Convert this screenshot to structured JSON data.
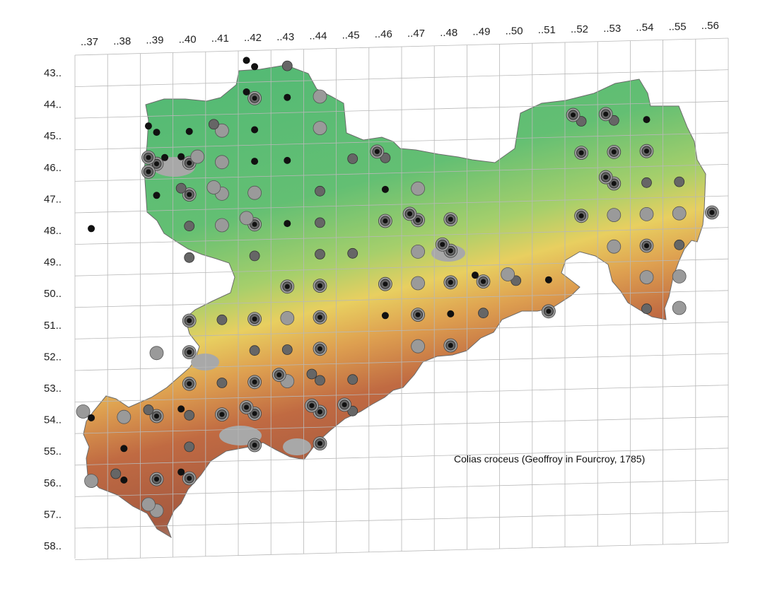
{
  "map": {
    "species_label": "Colias croceus (Geoffroy in Fourcroy, 1785)",
    "column_labels": [
      "..37",
      "..38",
      "..39",
      "..40",
      "..41",
      "..42",
      "..43",
      "..44",
      "..45",
      "..46",
      "..47",
      "..48",
      "..49",
      "..50",
      "..51",
      "..52",
      "..53",
      "..54",
      "..55",
      "..56"
    ],
    "row_labels": [
      "43..",
      "44..",
      "45..",
      "46..",
      "47..",
      "48..",
      "49..",
      "50..",
      "51..",
      "52..",
      "53..",
      "54..",
      "55..",
      "56..",
      "57..",
      "58.."
    ],
    "colors": {
      "grid": "#b8b8b8",
      "dot_light": "#9a9a9a",
      "dot_mid": "#666666",
      "dot_dark": "#111111",
      "elev_low": "#5fbf7a",
      "elev_mid": "#e8c85a",
      "elev_high": "#b0553a",
      "elev_peak": "#9b9b9b"
    },
    "records": [
      {
        "col": "..42",
        "row": "43..",
        "kind": "small"
      },
      {
        "col": "..42",
        "row": "43..",
        "kind": "small"
      },
      {
        "col": "..43",
        "row": "43..",
        "kind": "mid"
      },
      {
        "col": "..42",
        "row": "44..",
        "kind": "ring"
      },
      {
        "col": "..43",
        "row": "44..",
        "kind": "small"
      },
      {
        "col": "..44",
        "row": "44..",
        "kind": "large"
      },
      {
        "col": "..42",
        "row": "44..",
        "kind": "small"
      },
      {
        "col": "..39",
        "row": "45..",
        "kind": "small"
      },
      {
        "col": "..41",
        "row": "45..",
        "kind": "large"
      },
      {
        "col": "..44",
        "row": "45..",
        "kind": "large"
      },
      {
        "col": "..39",
        "row": "45..",
        "kind": "small"
      },
      {
        "col": "..40",
        "row": "45..",
        "kind": "small"
      },
      {
        "col": "..41",
        "row": "45..",
        "kind": "mid"
      },
      {
        "col": "..42",
        "row": "45..",
        "kind": "small"
      },
      {
        "col": "..39",
        "row": "46..",
        "kind": "ring"
      },
      {
        "col": "..39",
        "row": "46..",
        "kind": "ring"
      },
      {
        "col": "..40",
        "row": "46..",
        "kind": "ring"
      },
      {
        "col": "..40",
        "row": "46..",
        "kind": "small"
      },
      {
        "col": "..41",
        "row": "46..",
        "kind": "large"
      },
      {
        "col": "..42",
        "row": "46..",
        "kind": "small"
      },
      {
        "col": "..43",
        "row": "46..",
        "kind": "small"
      },
      {
        "col": "..39",
        "row": "46..",
        "kind": "small"
      },
      {
        "col": "..39",
        "row": "46..",
        "kind": "ring"
      },
      {
        "col": "..40",
        "row": "46..",
        "kind": "large"
      },
      {
        "col": "..40",
        "row": "47..",
        "kind": "ring"
      },
      {
        "col": "..39",
        "row": "47..",
        "kind": "small"
      },
      {
        "col": "..40",
        "row": "47..",
        "kind": "mid"
      },
      {
        "col": "..41",
        "row": "47..",
        "kind": "large"
      },
      {
        "col": "..41",
        "row": "47..",
        "kind": "large"
      },
      {
        "col": "..42",
        "row": "47..",
        "kind": "large"
      },
      {
        "col": "..44",
        "row": "47..",
        "kind": "mid"
      },
      {
        "col": "..45",
        "row": "46..",
        "kind": "mid"
      },
      {
        "col": "..46",
        "row": "46..",
        "kind": "mid"
      },
      {
        "col": "..46",
        "row": "46..",
        "kind": "ring"
      },
      {
        "col": "..47",
        "row": "47..",
        "kind": "large"
      },
      {
        "col": "..37",
        "row": "48..",
        "kind": "small"
      },
      {
        "col": "..40",
        "row": "48..",
        "kind": "mid"
      },
      {
        "col": "..41",
        "row": "48..",
        "kind": "large"
      },
      {
        "col": "..42",
        "row": "48..",
        "kind": "ring"
      },
      {
        "col": "..43",
        "row": "48..",
        "kind": "small"
      },
      {
        "col": "..44",
        "row": "48..",
        "kind": "mid"
      },
      {
        "col": "..42",
        "row": "48..",
        "kind": "large"
      },
      {
        "col": "..40",
        "row": "49..",
        "kind": "mid"
      },
      {
        "col": "..42",
        "row": "49..",
        "kind": "mid"
      },
      {
        "col": "..44",
        "row": "49..",
        "kind": "mid"
      },
      {
        "col": "..45",
        "row": "49..",
        "kind": "mid"
      },
      {
        "col": "..46",
        "row": "47..",
        "kind": "small"
      },
      {
        "col": "..46",
        "row": "48..",
        "kind": "ring"
      },
      {
        "col": "..47",
        "row": "48..",
        "kind": "ring"
      },
      {
        "col": "..47",
        "row": "48..",
        "kind": "ring"
      },
      {
        "col": "..48",
        "row": "48..",
        "kind": "ring"
      },
      {
        "col": "..47",
        "row": "49..",
        "kind": "large"
      },
      {
        "col": "..48",
        "row": "49..",
        "kind": "ring"
      },
      {
        "col": "..48",
        "row": "49..",
        "kind": "ring"
      },
      {
        "col": "..48",
        "row": "50..",
        "kind": "ring"
      },
      {
        "col": "..49",
        "row": "50..",
        "kind": "ring"
      },
      {
        "col": "..49",
        "row": "50..",
        "kind": "small"
      },
      {
        "col": "..50",
        "row": "50..",
        "kind": "mid"
      },
      {
        "col": "..50",
        "row": "50..",
        "kind": "large"
      },
      {
        "col": "..51",
        "row": "50..",
        "kind": "small"
      },
      {
        "col": "..51",
        "row": "51..",
        "kind": "ring"
      },
      {
        "col": "..52",
        "row": "45..",
        "kind": "mid"
      },
      {
        "col": "..52",
        "row": "45..",
        "kind": "ring"
      },
      {
        "col": "..53",
        "row": "45..",
        "kind": "mid"
      },
      {
        "col": "..53",
        "row": "45..",
        "kind": "ring"
      },
      {
        "col": "..54",
        "row": "45..",
        "kind": "small"
      },
      {
        "col": "..52",
        "row": "46..",
        "kind": "ring"
      },
      {
        "col": "..53",
        "row": "46..",
        "kind": "ring"
      },
      {
        "col": "..54",
        "row": "46..",
        "kind": "ring"
      },
      {
        "col": "..53",
        "row": "47..",
        "kind": "ring"
      },
      {
        "col": "..53",
        "row": "47..",
        "kind": "ring"
      },
      {
        "col": "..54",
        "row": "47..",
        "kind": "mid"
      },
      {
        "col": "..55",
        "row": "47..",
        "kind": "mid"
      },
      {
        "col": "..52",
        "row": "48..",
        "kind": "ring"
      },
      {
        "col": "..53",
        "row": "48..",
        "kind": "large"
      },
      {
        "col": "..54",
        "row": "48..",
        "kind": "large"
      },
      {
        "col": "..55",
        "row": "48..",
        "kind": "large"
      },
      {
        "col": "..56",
        "row": "48..",
        "kind": "ring"
      },
      {
        "col": "..53",
        "row": "49..",
        "kind": "large"
      },
      {
        "col": "..54",
        "row": "49..",
        "kind": "ring"
      },
      {
        "col": "..55",
        "row": "49..",
        "kind": "mid"
      },
      {
        "col": "..54",
        "row": "50..",
        "kind": "large"
      },
      {
        "col": "..55",
        "row": "50..",
        "kind": "large"
      },
      {
        "col": "..54",
        "row": "51..",
        "kind": "mid"
      },
      {
        "col": "..55",
        "row": "51..",
        "kind": "large"
      },
      {
        "col": "..43",
        "row": "50..",
        "kind": "ring"
      },
      {
        "col": "..44",
        "row": "50..",
        "kind": "ring"
      },
      {
        "col": "..44",
        "row": "51..",
        "kind": "ring"
      },
      {
        "col": "..43",
        "row": "51..",
        "kind": "large"
      },
      {
        "col": "..42",
        "row": "51..",
        "kind": "ring"
      },
      {
        "col": "..41",
        "row": "51..",
        "kind": "mid"
      },
      {
        "col": "..40",
        "row": "51..",
        "kind": "ring"
      },
      {
        "col": "..46",
        "row": "50..",
        "kind": "ring"
      },
      {
        "col": "..47",
        "row": "50..",
        "kind": "large"
      },
      {
        "col": "..46",
        "row": "51..",
        "kind": "small"
      },
      {
        "col": "..47",
        "row": "51..",
        "kind": "ring"
      },
      {
        "col": "..48",
        "row": "51..",
        "kind": "small"
      },
      {
        "col": "..49",
        "row": "51..",
        "kind": "mid"
      },
      {
        "col": "..48",
        "row": "52..",
        "kind": "ring"
      },
      {
        "col": "..47",
        "row": "52..",
        "kind": "large"
      },
      {
        "col": "..44",
        "row": "52..",
        "kind": "ring"
      },
      {
        "col": "..43",
        "row": "52..",
        "kind": "mid"
      },
      {
        "col": "..42",
        "row": "52..",
        "kind": "mid"
      },
      {
        "col": "..40",
        "row": "52..",
        "kind": "ring"
      },
      {
        "col": "..39",
        "row": "52..",
        "kind": "large"
      },
      {
        "col": "..40",
        "row": "53..",
        "kind": "ring"
      },
      {
        "col": "..41",
        "row": "53..",
        "kind": "mid"
      },
      {
        "col": "..43",
        "row": "53..",
        "kind": "large"
      },
      {
        "col": "..44",
        "row": "53..",
        "kind": "mid"
      },
      {
        "col": "..45",
        "row": "53..",
        "kind": "mid"
      },
      {
        "col": "..42",
        "row": "53..",
        "kind": "ring"
      },
      {
        "col": "..43",
        "row": "53..",
        "kind": "ring"
      },
      {
        "col": "..44",
        "row": "53..",
        "kind": "mid"
      },
      {
        "col": "..37",
        "row": "54..",
        "kind": "small"
      },
      {
        "col": "..39",
        "row": "54..",
        "kind": "ring"
      },
      {
        "col": "..40",
        "row": "54..",
        "kind": "mid"
      },
      {
        "col": "..41",
        "row": "54..",
        "kind": "ring"
      },
      {
        "col": "..42",
        "row": "54..",
        "kind": "ring"
      },
      {
        "col": "..44",
        "row": "54..",
        "kind": "ring"
      },
      {
        "col": "..45",
        "row": "54..",
        "kind": "mid"
      },
      {
        "col": "..37",
        "row": "54..",
        "kind": "large"
      },
      {
        "col": "..38",
        "row": "54..",
        "kind": "large"
      },
      {
        "col": "..39",
        "row": "54..",
        "kind": "mid"
      },
      {
        "col": "..40",
        "row": "54..",
        "kind": "small"
      },
      {
        "col": "..42",
        "row": "54..",
        "kind": "ring"
      },
      {
        "col": "..44",
        "row": "54..",
        "kind": "ring"
      },
      {
        "col": "..45",
        "row": "54..",
        "kind": "ring"
      },
      {
        "col": "..38",
        "row": "55..",
        "kind": "small"
      },
      {
        "col": "..40",
        "row": "55..",
        "kind": "mid"
      },
      {
        "col": "..42",
        "row": "55..",
        "kind": "ring"
      },
      {
        "col": "..44",
        "row": "55..",
        "kind": "ring"
      },
      {
        "col": "..37",
        "row": "56..",
        "kind": "large"
      },
      {
        "col": "..38",
        "row": "56..",
        "kind": "small"
      },
      {
        "col": "..38",
        "row": "56..",
        "kind": "mid"
      },
      {
        "col": "..39",
        "row": "56..",
        "kind": "ring"
      },
      {
        "col": "..40",
        "row": "56..",
        "kind": "ring"
      },
      {
        "col": "..40",
        "row": "56..",
        "kind": "small"
      },
      {
        "col": "..39",
        "row": "57..",
        "kind": "large"
      },
      {
        "col": "..39",
        "row": "57..",
        "kind": "large"
      }
    ]
  }
}
